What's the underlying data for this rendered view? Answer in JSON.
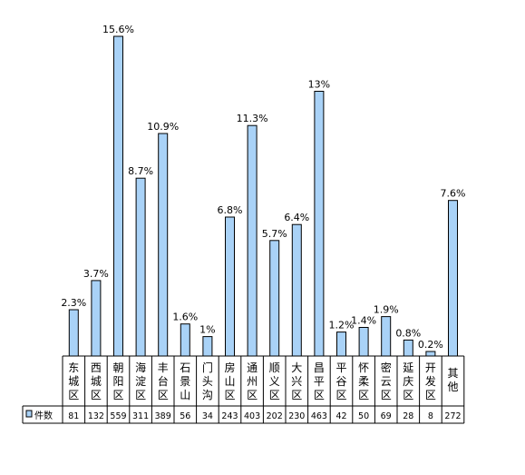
{
  "chart_data": {
    "type": "bar",
    "categories": [
      "东城区",
      "西城区",
      "朝阳区",
      "海淀区",
      "丰台区",
      "石景山",
      "门头沟",
      "房山区",
      "通州区",
      "顺义区",
      "大兴区",
      "昌平区",
      "平谷区",
      "怀柔区",
      "密云区",
      "延庆区",
      "开发区",
      "其他"
    ],
    "category_chars": [
      [
        "东",
        "城",
        "区"
      ],
      [
        "西",
        "城",
        "区"
      ],
      [
        "朝",
        "阳",
        "区"
      ],
      [
        "海",
        "淀",
        "区"
      ],
      [
        "丰",
        "台",
        "区"
      ],
      [
        "石",
        "景",
        "山"
      ],
      [
        "门",
        "头",
        "沟"
      ],
      [
        "房",
        "山",
        "区"
      ],
      [
        "通",
        "州",
        "区"
      ],
      [
        "顺",
        "义",
        "区"
      ],
      [
        "大",
        "兴",
        "区"
      ],
      [
        "昌",
        "平",
        "区"
      ],
      [
        "平",
        "谷",
        "区"
      ],
      [
        "怀",
        "柔",
        "区"
      ],
      [
        "密",
        "云",
        "区"
      ],
      [
        "延",
        "庆",
        "区"
      ],
      [
        "开",
        "发",
        "区"
      ],
      [
        "其",
        "他"
      ]
    ],
    "percent_labels": [
      "2.3%",
      "3.7%",
      "15.6%",
      "8.7%",
      "10.9%",
      "1.6%",
      "1%",
      "6.8%",
      "11.3%",
      "5.7%",
      "6.4%",
      "13%",
      "1.2%",
      "1.4%",
      "1.9%",
      "0.8%",
      "0.2%",
      "7.6%"
    ],
    "series": [
      {
        "name": "件数",
        "values": [
          81,
          132,
          559,
          311,
          389,
          56,
          34,
          243,
          403,
          202,
          230,
          463,
          42,
          50,
          69,
          28,
          8,
          272
        ],
        "labels": [
          "81",
          "132",
          "559",
          "311",
          "389",
          "56",
          "34",
          "243",
          "403",
          "202",
          "230",
          "463",
          "42",
          "50",
          "69",
          "28",
          "8",
          "272"
        ]
      }
    ],
    "ylim": [
      0,
      559
    ],
    "grid": false,
    "legend": "bottom-left (in data table)",
    "bar_color": "#a9d2f7",
    "bar_stroke": "#000000"
  }
}
